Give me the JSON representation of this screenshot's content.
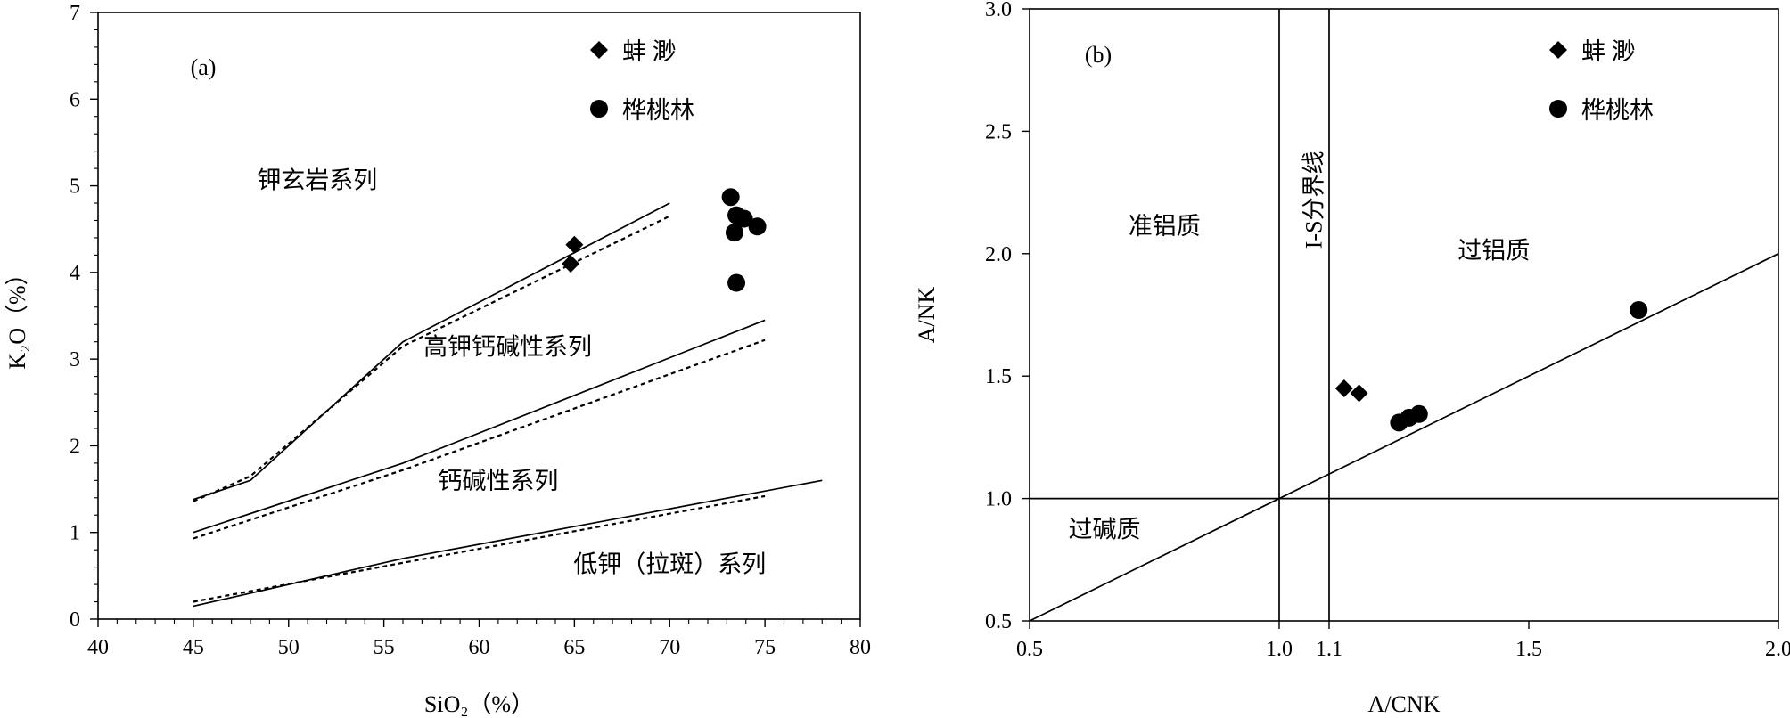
{
  "chart_data": [
    {
      "type": "scatter",
      "panel_label": "(a)",
      "xlabel": "SiO₂（%）",
      "ylabel": "K₂O（%）",
      "xlim": [
        40,
        80
      ],
      "ylim": [
        0,
        7
      ],
      "xticks": [
        40,
        45,
        50,
        55,
        60,
        65,
        70,
        75,
        80
      ],
      "yticks": [
        0,
        1,
        2,
        3,
        4,
        5,
        6,
        7
      ],
      "legend_position": "top-right",
      "series": [
        {
          "name": "蚌 渺",
          "marker": "diamond",
          "points": [
            [
              65.0,
              4.32
            ],
            [
              64.8,
              4.1
            ]
          ]
        },
        {
          "name": "桦桃林",
          "marker": "circle",
          "points": [
            [
              73.2,
              4.87
            ],
            [
              73.5,
              4.66
            ],
            [
              73.9,
              4.62
            ],
            [
              73.4,
              4.46
            ],
            [
              74.6,
              4.53
            ],
            [
              73.5,
              3.88
            ]
          ]
        }
      ],
      "boundary_lines": [
        {
          "style": "solid",
          "points": [
            [
              45,
              1.38
            ],
            [
              48,
              1.6
            ],
            [
              56,
              3.2
            ],
            [
              70,
              4.8
            ]
          ]
        },
        {
          "style": "dashed",
          "points": [
            [
              45,
              1.36
            ],
            [
              48,
              1.65
            ],
            [
              56,
              3.15
            ],
            [
              70,
              4.65
            ]
          ]
        },
        {
          "style": "solid",
          "points": [
            [
              45,
              1.0
            ],
            [
              56,
              1.8
            ],
            [
              75,
              3.45
            ]
          ]
        },
        {
          "style": "dashed",
          "points": [
            [
              45,
              0.93
            ],
            [
              56,
              1.72
            ],
            [
              75,
              3.22
            ]
          ]
        },
        {
          "style": "solid",
          "points": [
            [
              45,
              0.15
            ],
            [
              56,
              0.7
            ],
            [
              78,
              1.6
            ]
          ]
        },
        {
          "style": "dashed",
          "points": [
            [
              45,
              0.2
            ],
            [
              56,
              0.65
            ],
            [
              75,
              1.42
            ]
          ]
        }
      ],
      "field_labels": [
        {
          "text": "钾玄岩系列",
          "x": 51.5,
          "y": 4.97
        },
        {
          "text": "高钾钙碱性系列",
          "x": 61.5,
          "y": 3.05
        },
        {
          "text": "钙碱性系列",
          "x": 61.0,
          "y": 1.5
        },
        {
          "text": "低钾（拉斑）系列",
          "x": 70.0,
          "y": 0.54
        }
      ]
    },
    {
      "type": "scatter",
      "panel_label": "(b)",
      "xlabel": "A/CNK",
      "ylabel": "A/NK",
      "xlim": [
        0.5,
        2.0
      ],
      "ylim": [
        0.5,
        3.0
      ],
      "xticks": [
        0.5,
        1.0,
        1.1,
        1.5,
        2.0
      ],
      "xtick_labels": [
        "0.5",
        "1.0",
        "1.1",
        "1.5",
        "2.0"
      ],
      "yticks": [
        0.5,
        1.0,
        1.5,
        2.0,
        2.5,
        3.0
      ],
      "ytick_labels": [
        "0.5",
        "1.0",
        "1.5",
        "2.0",
        "2.5",
        "3.0"
      ],
      "legend_position": "top-right",
      "series": [
        {
          "name": "蚌 渺",
          "marker": "diamond",
          "points": [
            [
              1.13,
              1.45
            ],
            [
              1.16,
              1.43
            ]
          ]
        },
        {
          "name": "桦桃林",
          "marker": "circle",
          "points": [
            [
              1.24,
              1.31
            ],
            [
              1.26,
              1.33
            ],
            [
              1.28,
              1.345
            ],
            [
              1.72,
              1.77
            ]
          ]
        }
      ],
      "reference_lines": [
        {
          "orientation": "vertical",
          "value": 1.0
        },
        {
          "orientation": "vertical",
          "value": 1.1
        },
        {
          "orientation": "horizontal",
          "value": 1.0
        },
        {
          "orientation": "diagonal",
          "points": [
            [
              0.5,
              0.5
            ],
            [
              2.0,
              2.0
            ]
          ]
        }
      ],
      "field_labels": [
        {
          "text": "准铝质",
          "x": 0.77,
          "y": 2.08
        },
        {
          "text": "过铝质",
          "x": 1.43,
          "y": 1.98
        },
        {
          "text": "过碱质",
          "x": 0.65,
          "y": 0.84
        }
      ],
      "rotated_label": {
        "text": "I-S分界线",
        "x": 1.085,
        "y": 2.22
      }
    }
  ]
}
